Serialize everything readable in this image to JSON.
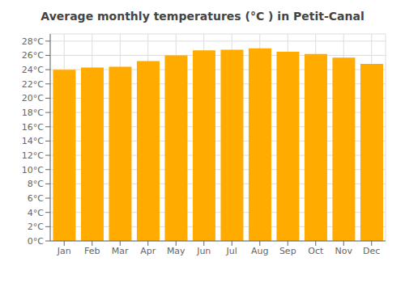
{
  "chart_data": {
    "type": "bar",
    "title": "Average monthly temperatures (°C ) in Petit-Canal",
    "categories": [
      "Jan",
      "Feb",
      "Mar",
      "Apr",
      "May",
      "Jun",
      "Jul",
      "Aug",
      "Sep",
      "Oct",
      "Nov",
      "Dec"
    ],
    "values": [
      24.0,
      24.3,
      24.4,
      25.2,
      26.0,
      26.7,
      26.8,
      27.0,
      26.5,
      26.2,
      25.7,
      24.8
    ],
    "color": "#FFAB00",
    "ylim": [
      0,
      29
    ],
    "yticks": [
      {
        "value": 0,
        "label": "0°C"
      },
      {
        "value": 2,
        "label": "2°C"
      },
      {
        "value": 4,
        "label": "4°C"
      },
      {
        "value": 6,
        "label": "6°C"
      },
      {
        "value": 8,
        "label": "8°C"
      },
      {
        "value": 10,
        "label": "10°C"
      },
      {
        "value": 12,
        "label": "12°C"
      },
      {
        "value": 14,
        "label": "14°C"
      },
      {
        "value": 16,
        "label": "16°C"
      },
      {
        "value": 18,
        "label": "18°C"
      },
      {
        "value": 20,
        "label": "20°C"
      },
      {
        "value": 22,
        "label": "22°C"
      },
      {
        "value": 24,
        "label": "24°C"
      },
      {
        "value": 26,
        "label": "26°C"
      },
      {
        "value": 28,
        "label": "28°C"
      }
    ],
    "grid": true
  }
}
